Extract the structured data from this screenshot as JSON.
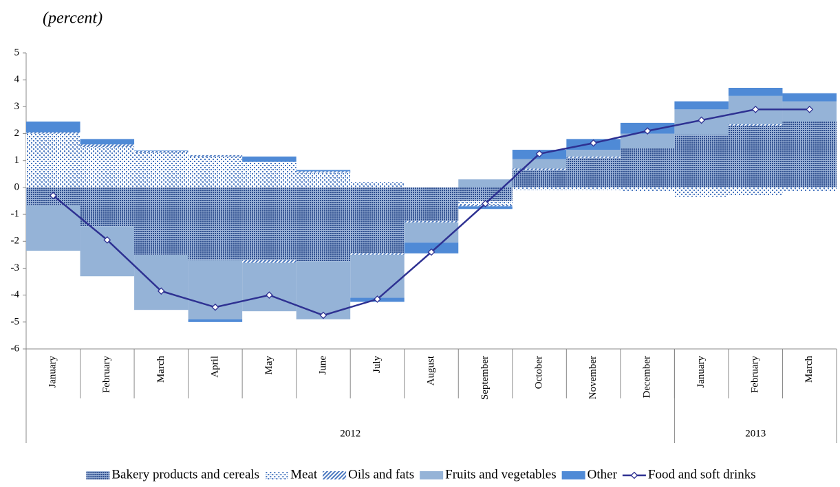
{
  "chart_data": {
    "type": "bar",
    "title": "(percent)",
    "categories": [
      "January",
      "February",
      "March",
      "April",
      "May",
      "June",
      "July",
      "August",
      "September",
      "October",
      "November",
      "December",
      "January",
      "February",
      "March"
    ],
    "x_groups": [
      {
        "label": "2012",
        "count": 12
      },
      {
        "label": "2013",
        "count": 3
      }
    ],
    "series": [
      {
        "name": "Bakery products and cereals",
        "color": "#2f4f8f",
        "pattern": "dense-dots",
        "values": [
          -0.65,
          -1.45,
          -2.5,
          -2.7,
          -2.7,
          -2.75,
          -2.45,
          -1.25,
          -0.5,
          0.65,
          1.1,
          1.45,
          1.95,
          2.3,
          2.45
        ]
      },
      {
        "name": "Meat",
        "color": "#4a78c0",
        "pattern": "dots",
        "values": [
          2.0,
          1.5,
          1.3,
          1.15,
          0.95,
          0.55,
          0.2,
          0,
          -0.15,
          -0.1,
          -0.1,
          -0.15,
          -0.35,
          -0.3,
          -0.15
        ]
      },
      {
        "name": "Oils and fats",
        "color": "#4a78c0",
        "pattern": "diagonal",
        "values": [
          0.05,
          0.1,
          0.05,
          0.05,
          -0.1,
          0.05,
          -0.05,
          -0.05,
          -0.05,
          0.05,
          0.05,
          0,
          0,
          0.05,
          0
        ]
      },
      {
        "name": "Fruits and vegetables",
        "color": "#95b3d7",
        "pattern": "solid",
        "values": [
          -1.7,
          -1.85,
          -2.05,
          -2.2,
          -1.8,
          -2.15,
          -1.6,
          -0.75,
          0.3,
          0.35,
          0.25,
          0.55,
          0.95,
          1.05,
          0.75
        ]
      },
      {
        "name": "Other",
        "color": "#4f8ad6",
        "pattern": "solid",
        "values": [
          0.4,
          0.2,
          0.02,
          -0.1,
          0.2,
          0.05,
          -0.15,
          -0.4,
          -0.1,
          0.35,
          0.4,
          0.4,
          0.3,
          0.3,
          0.3
        ]
      }
    ],
    "line_series": {
      "name": "Food and soft drinks",
      "color": "#2e3192",
      "values": [
        -0.3,
        -1.95,
        -3.85,
        -4.45,
        -4.0,
        -4.75,
        -4.15,
        -2.4,
        -0.6,
        1.25,
        1.65,
        2.1,
        2.5,
        2.9,
        2.9
      ]
    },
    "ylim": [
      -6,
      5
    ],
    "yticks": [
      -6,
      -5,
      -4,
      -3,
      -2,
      -1,
      0,
      1,
      2,
      3,
      4,
      5
    ]
  }
}
